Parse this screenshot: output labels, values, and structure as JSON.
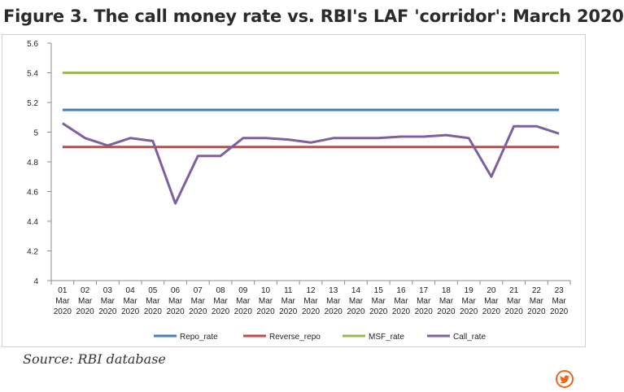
{
  "title": "Figure 3. The call money rate vs. RBI's LAF 'corridor': March 2020",
  "source": "Source: RBI database",
  "chart_data": {
    "type": "line",
    "ylim": [
      4,
      5.6
    ],
    "yticks": [
      "4",
      "4.2",
      "4.4",
      "4.6",
      "4.8",
      "5",
      "5.2",
      "5.4",
      "5.6"
    ],
    "ytick_values": [
      4,
      4.2,
      4.4,
      4.6,
      4.8,
      5,
      5.2,
      5.4,
      5.6
    ],
    "grid": false,
    "legend": "bottom",
    "categories": [
      [
        "01",
        "Mar",
        "2020"
      ],
      [
        "02",
        "Mar",
        "2020"
      ],
      [
        "03",
        "Mar",
        "2020"
      ],
      [
        "04",
        "Mar",
        "2020"
      ],
      [
        "05",
        "Mar",
        "2020"
      ],
      [
        "06",
        "Mar",
        "2020"
      ],
      [
        "07",
        "Mar",
        "2020"
      ],
      [
        "08",
        "Mar",
        "2020"
      ],
      [
        "09",
        "Mar",
        "2020"
      ],
      [
        "10",
        "Mar",
        "2020"
      ],
      [
        "11",
        "Mar",
        "2020"
      ],
      [
        "12",
        "Mar",
        "2020"
      ],
      [
        "13",
        "Mar",
        "2020"
      ],
      [
        "14",
        "Mar",
        "2020"
      ],
      [
        "15",
        "Mar",
        "2020"
      ],
      [
        "16",
        "Mar",
        "2020"
      ],
      [
        "17",
        "Mar",
        "2020"
      ],
      [
        "18",
        "Mar",
        "2020"
      ],
      [
        "19",
        "Mar",
        "2020"
      ],
      [
        "20",
        "Mar",
        "2020"
      ],
      [
        "21",
        "Mar",
        "2020"
      ],
      [
        "22",
        "Mar",
        "2020"
      ],
      [
        "23",
        "Mar",
        "2020"
      ]
    ],
    "series": [
      {
        "name": "Repo_rate",
        "color": "#4a7ebb",
        "values": [
          5.15,
          5.15,
          5.15,
          5.15,
          5.15,
          5.15,
          5.15,
          5.15,
          5.15,
          5.15,
          5.15,
          5.15,
          5.15,
          5.15,
          5.15,
          5.15,
          5.15,
          5.15,
          5.15,
          5.15,
          5.15,
          5.15,
          5.15
        ]
      },
      {
        "name": "Reverse_repo",
        "color": "#be4b48",
        "values": [
          4.9,
          4.9,
          4.9,
          4.9,
          4.9,
          4.9,
          4.9,
          4.9,
          4.9,
          4.9,
          4.9,
          4.9,
          4.9,
          4.9,
          4.9,
          4.9,
          4.9,
          4.9,
          4.9,
          4.9,
          4.9,
          4.9,
          4.9
        ]
      },
      {
        "name": "MSF_rate",
        "color": "#98b954",
        "values": [
          5.4,
          5.4,
          5.4,
          5.4,
          5.4,
          5.4,
          5.4,
          5.4,
          5.4,
          5.4,
          5.4,
          5.4,
          5.4,
          5.4,
          5.4,
          5.4,
          5.4,
          5.4,
          5.4,
          5.4,
          5.4,
          5.4,
          5.4
        ]
      },
      {
        "name": "Call_rate",
        "color": "#7d60a0",
        "values": [
          5.06,
          4.96,
          4.91,
          4.96,
          4.94,
          4.52,
          4.84,
          4.84,
          4.96,
          4.96,
          4.95,
          4.93,
          4.96,
          4.96,
          4.96,
          4.97,
          4.97,
          4.98,
          4.96,
          4.7,
          5.04,
          5.04,
          4.99
        ]
      }
    ]
  },
  "icons": {
    "share": "twitter-icon",
    "share_color": "#e8671c"
  }
}
